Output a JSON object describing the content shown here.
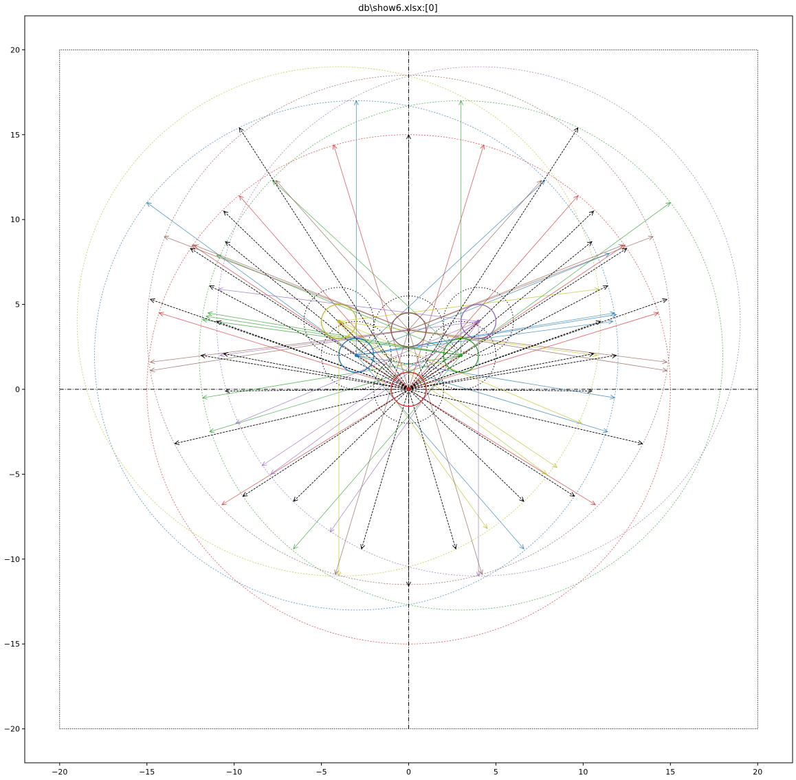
{
  "chart_data": {
    "type": "line",
    "title": "db\\show6.xlsx:[0]",
    "xlim": [
      -22,
      22
    ],
    "ylim": [
      -22,
      22
    ],
    "x_ticks": [
      -20,
      -15,
      -10,
      -5,
      0,
      5,
      10,
      15,
      20
    ],
    "y_ticks": [
      -20,
      -15,
      -10,
      -5,
      0,
      5,
      10,
      15,
      20
    ],
    "grid": false,
    "colors": {
      "blue": "#1f77b4",
      "orange": "#ff7f0e",
      "green": "#2ca02c",
      "red": "#d62728",
      "purple": "#9467bd",
      "brown": "#8c564b",
      "pink": "#e377c2",
      "olive": "#bcbd22",
      "black": "#000000"
    },
    "boundary_square": [
      [
        -20,
        -20
      ],
      [
        20,
        -20
      ],
      [
        20,
        20
      ],
      [
        -20,
        20
      ],
      [
        -20,
        -20
      ]
    ],
    "axis_lines": [
      {
        "name": "horizontal-axis-line",
        "from": [
          -20,
          0
        ],
        "to": [
          20,
          0
        ]
      },
      {
        "name": "vertical-axis-line",
        "from": [
          0,
          -20
        ],
        "to": [
          0,
          20
        ]
      }
    ],
    "small_circles": [
      {
        "name": "red",
        "center": [
          0,
          0
        ],
        "r": 1.0,
        "color": "#d62728"
      },
      {
        "name": "blue",
        "center": [
          -3,
          2
        ],
        "r": 1.0,
        "color": "#1f77b4"
      },
      {
        "name": "green",
        "center": [
          3,
          2
        ],
        "r": 1.0,
        "color": "#2ca02c"
      },
      {
        "name": "olive",
        "center": [
          -4,
          4
        ],
        "r": 1.0,
        "color": "#bcbd22"
      },
      {
        "name": "purple",
        "center": [
          4,
          4
        ],
        "r": 1.0,
        "color": "#9467bd"
      },
      {
        "name": "brown",
        "center": [
          0,
          3.5
        ],
        "r": 1.0,
        "color": "#8c564b"
      }
    ],
    "dotted_circles": [
      {
        "center": [
          0,
          0
        ],
        "r": 2.0
      },
      {
        "center": [
          -4,
          4
        ],
        "r": 2.0
      },
      {
        "center": [
          4,
          4
        ],
        "r": 2.0
      },
      {
        "center": [
          0,
          3.5
        ],
        "r": 2.0
      },
      {
        "center": [
          -3,
          2
        ],
        "r": 2.0
      },
      {
        "center": [
          3,
          2
        ],
        "r": 2.0
      }
    ],
    "large_circles": [
      {
        "name": "red",
        "center": [
          0,
          0
        ],
        "r": 15,
        "color": "#d62728"
      },
      {
        "name": "blue",
        "center": [
          -3,
          2
        ],
        "r": 15,
        "color": "#1f77b4"
      },
      {
        "name": "green",
        "center": [
          3,
          2
        ],
        "r": 15,
        "color": "#2ca02c"
      },
      {
        "name": "olive",
        "center": [
          -4,
          4
        ],
        "r": 15,
        "color": "#bcbd22"
      },
      {
        "name": "purple",
        "center": [
          4,
          4
        ],
        "r": 15,
        "color": "#9467bd"
      },
      {
        "name": "brown",
        "center": [
          0,
          3.5
        ],
        "r": 15,
        "color": "#8c564b"
      }
    ],
    "series": [
      {
        "name": "red",
        "color": "#d62728",
        "origin": [
          0,
          0
        ],
        "endpoints": [
          [
            -4.3,
            14.4
          ],
          [
            4.3,
            14.4
          ],
          [
            -9.7,
            11.4
          ],
          [
            9.7,
            11.4
          ],
          [
            -12.4,
            8.5
          ],
          [
            12.4,
            8.5
          ],
          [
            -14.3,
            4.5
          ],
          [
            14.3,
            4.5
          ],
          [
            -10.7,
            -6.8
          ],
          [
            10.7,
            -6.8
          ],
          [
            -4.0,
            4.0
          ],
          [
            4.0,
            4.0
          ]
        ]
      },
      {
        "name": "blue",
        "color": "#1f77b4",
        "origin": [
          -3,
          2
        ],
        "endpoints": [
          [
            -3,
            17
          ],
          [
            -15,
            11
          ],
          [
            7.8,
            12.3
          ],
          [
            11.5,
            8.0
          ],
          [
            11.8,
            4.5
          ],
          [
            11.8,
            -0.5
          ],
          [
            11.4,
            -2.5
          ],
          [
            6.6,
            -9.4
          ],
          [
            11.9,
            4.4
          ],
          [
            11.7,
            4.0
          ]
        ]
      },
      {
        "name": "green",
        "color": "#2ca02c",
        "origin": [
          3,
          2
        ],
        "endpoints": [
          [
            3,
            17
          ],
          [
            15,
            11
          ],
          [
            -7.8,
            12.3
          ],
          [
            -11.5,
            4.5
          ],
          [
            -11.8,
            4.1
          ],
          [
            -11.8,
            -0.5
          ],
          [
            -11.4,
            -2.5
          ],
          [
            -6.6,
            -9.4
          ],
          [
            -11.0,
            7.9
          ],
          [
            -11.6,
            4.3
          ]
        ]
      },
      {
        "name": "olive",
        "color": "#bcbd22",
        "origin": [
          -4,
          4
        ],
        "endpoints": [
          [
            -4,
            -11
          ],
          [
            10.9,
            5.9
          ],
          [
            10.8,
            2.0
          ],
          [
            9.9,
            -2.0
          ],
          [
            7.9,
            -5.0
          ],
          [
            4.5,
            -8.2
          ],
          [
            8.5,
            -4.6
          ]
        ]
      },
      {
        "name": "purple",
        "color": "#9467bd",
        "origin": [
          4,
          4
        ],
        "endpoints": [
          [
            4,
            -11
          ],
          [
            -10.9,
            5.9
          ],
          [
            -10.8,
            2.0
          ],
          [
            -9.9,
            -2.0
          ],
          [
            -7.9,
            -5.0
          ],
          [
            -4.5,
            -8.4
          ],
          [
            -8.4,
            -4.5
          ]
        ]
      },
      {
        "name": "brown",
        "color": "#8c564b",
        "origin": [
          0,
          3.5
        ],
        "endpoints": [
          [
            -4.2,
            -10.9
          ],
          [
            4.2,
            -10.9
          ],
          [
            -14.0,
            9.0
          ],
          [
            14.0,
            9.0
          ],
          [
            -14.8,
            1.6
          ],
          [
            14.8,
            1.6
          ],
          [
            -14.8,
            1.1
          ],
          [
            14.8,
            1.1
          ],
          [
            -12.3,
            8.5
          ],
          [
            12.3,
            8.5
          ],
          [
            -7.6,
            12.3
          ],
          [
            7.6,
            12.3
          ]
        ]
      },
      {
        "name": "black",
        "color": "#000000",
        "origin": [
          0,
          0
        ],
        "endpoints": [
          [
            -9.7,
            15.4
          ],
          [
            9.7,
            15.4
          ],
          [
            -10.6,
            10.5
          ],
          [
            10.6,
            10.5
          ],
          [
            -12.5,
            8.3
          ],
          [
            12.5,
            8.3
          ],
          [
            -14.8,
            5.3
          ],
          [
            14.8,
            5.3
          ],
          [
            -11.4,
            6.1
          ],
          [
            11.4,
            6.1
          ],
          [
            -11.9,
            2.0
          ],
          [
            11.9,
            2.0
          ],
          [
            -10.6,
            2.1
          ],
          [
            10.6,
            2.1
          ],
          [
            -10.5,
            -0.1
          ],
          [
            10.5,
            -0.1
          ],
          [
            -13.4,
            -3.2
          ],
          [
            13.4,
            -3.2
          ],
          [
            -9.5,
            -6.3
          ],
          [
            9.5,
            -6.3
          ],
          [
            -6.6,
            -6.6
          ],
          [
            6.6,
            -6.6
          ],
          [
            -2.7,
            -9.4
          ],
          [
            2.7,
            -9.4
          ],
          [
            0,
            15.0
          ],
          [
            0,
            -11.6
          ],
          [
            -10.5,
            8.7
          ],
          [
            10.5,
            8.7
          ],
          [
            -11.0,
            4.0
          ],
          [
            11.0,
            4.0
          ]
        ]
      }
    ]
  }
}
